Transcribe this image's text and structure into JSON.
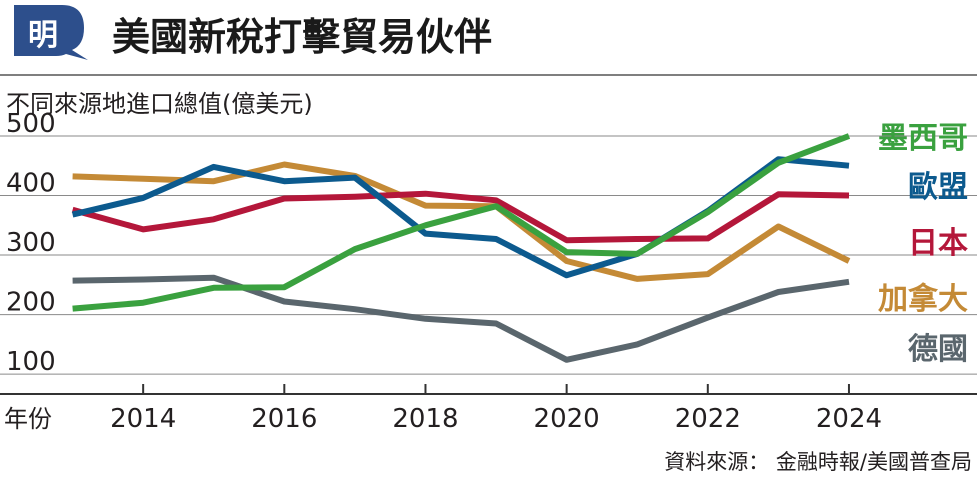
{
  "header": {
    "badge": "明",
    "title": "美國新稅打擊貿易伙伴"
  },
  "chart_data": {
    "type": "line",
    "title": "美國新稅打擊貿易伙伴",
    "ylabel": "不同來源地進口總值(億美元)",
    "xlabel": "年份",
    "source": "資料來源： 金融時報/美國普查局",
    "x": [
      2013,
      2014,
      2015,
      2016,
      2017,
      2018,
      2019,
      2020,
      2021,
      2022,
      2023,
      2024
    ],
    "xticks": [
      2014,
      2016,
      2018,
      2020,
      2022,
      2024
    ],
    "yticks": [
      100,
      200,
      300,
      400,
      500
    ],
    "xlim": [
      2012.0,
      2025.8
    ],
    "ylim": [
      70,
      510
    ],
    "grid": "horizontal",
    "legend_position": "right-inline",
    "series": [
      {
        "name": "德國",
        "color": "#5a666d",
        "values": [
          257,
          259,
          262,
          222,
          209,
          193,
          185,
          124,
          150,
          195,
          238,
          255
        ]
      },
      {
        "name": "加拿大",
        "color": "#c48a36",
        "values": [
          432,
          428,
          424,
          452,
          433,
          383,
          382,
          290,
          260,
          268,
          348,
          290
        ]
      },
      {
        "name": "日本",
        "color": "#b4173a",
        "values": [
          376,
          343,
          360,
          395,
          398,
          403,
          392,
          325,
          327,
          328,
          402,
          400
        ]
      },
      {
        "name": "歐盟",
        "color": "#0c5a8e",
        "values": [
          368,
          396,
          448,
          424,
          430,
          336,
          327,
          266,
          302,
          374,
          461,
          450
        ]
      },
      {
        "name": "墨西哥",
        "color": "#3aa13f",
        "values": [
          210,
          220,
          245,
          246,
          310,
          350,
          382,
          305,
          302,
          372,
          455,
          500
        ]
      }
    ]
  }
}
